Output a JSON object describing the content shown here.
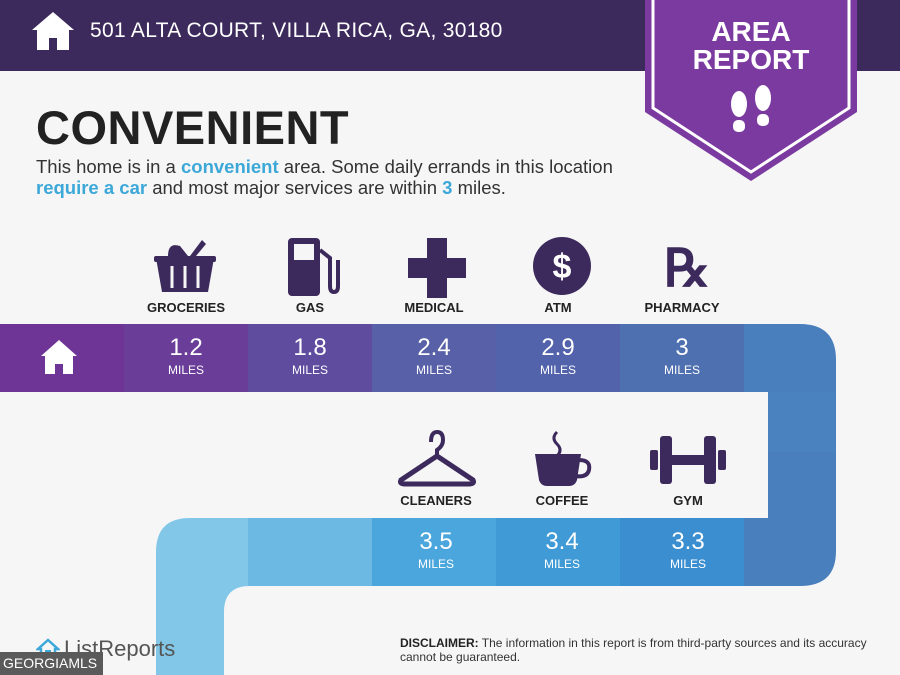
{
  "header": {
    "address": "501 ALTA COURT, VILLA RICA, GA, 30180"
  },
  "badge": {
    "line1": "AREA",
    "line2": "REPORT"
  },
  "title": "CONVENIENT",
  "description": {
    "p1": "This home is in a ",
    "h1": "convenient",
    "p2": " area. Some daily errands in this location ",
    "h2": "require a car",
    "p3": " and most major services are within ",
    "h3": "3",
    "p4": " miles."
  },
  "services": [
    {
      "label": "GROCERIES",
      "value": "1.2",
      "unit": "MILES",
      "icon": "shopping-basket-icon"
    },
    {
      "label": "GAS",
      "value": "1.8",
      "unit": "MILES",
      "icon": "gas-pump-icon"
    },
    {
      "label": "MEDICAL",
      "value": "2.4",
      "unit": "MILES",
      "icon": "medical-cross-icon"
    },
    {
      "label": "ATM",
      "value": "2.9",
      "unit": "MILES",
      "icon": "dollar-coin-icon"
    },
    {
      "label": "PHARMACY",
      "value": "3",
      "unit": "MILES",
      "icon": "rx-icon"
    },
    {
      "label": "CLEANERS",
      "value": "3.5",
      "unit": "MILES",
      "icon": "hanger-icon"
    },
    {
      "label": "COFFEE",
      "value": "3.4",
      "unit": "MILES",
      "icon": "coffee-cup-icon"
    },
    {
      "label": "GYM",
      "value": "3.3",
      "unit": "MILES",
      "icon": "dumbbell-icon"
    }
  ],
  "colors": {
    "header": "#3d2a5c",
    "badge": "#7b3aa0",
    "accent": "#3ca8d8",
    "row1": [
      "#6e3596",
      "#6a3d99",
      "#5f4c9f",
      "#5860a8",
      "#4f70b0",
      "#4a78b8"
    ],
    "row2": [
      "#82c7e8",
      "#6cbae3",
      "#4aa6dc",
      "#3f9ad5",
      "#3b8fd0",
      "#3f86c8"
    ]
  },
  "footer": {
    "brand": "ListReports",
    "mls": "GEORGIAMLS",
    "disclaimer_label": "DISCLAIMER:",
    "disclaimer_text": " The information in this report is from third-party sources and its accuracy cannot be guaranteed."
  }
}
